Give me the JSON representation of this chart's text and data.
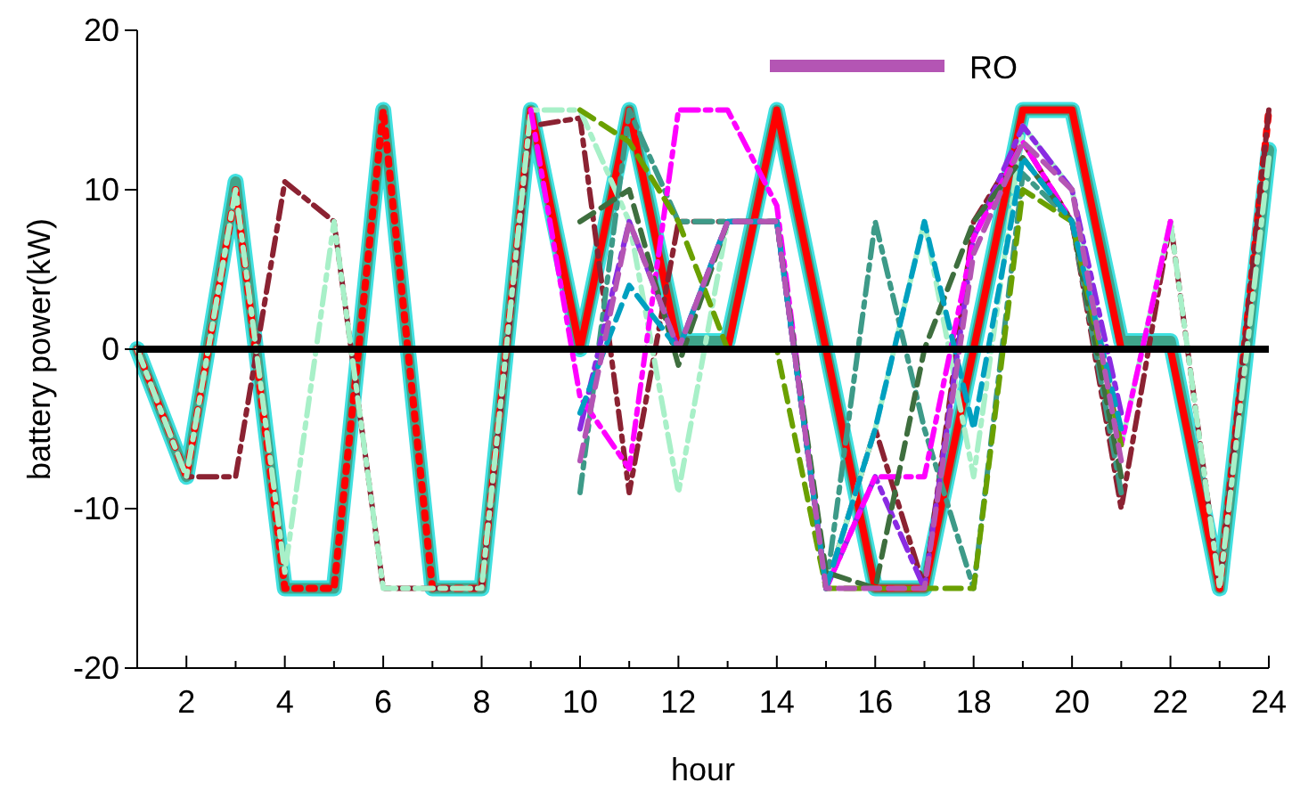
{
  "chart_data": {
    "type": "line",
    "xlabel": "hour",
    "ylabel": "battery power(kW)",
    "x": [
      1,
      2,
      3,
      4,
      5,
      6,
      7,
      8,
      9,
      10,
      11,
      12,
      13,
      14,
      15,
      16,
      17,
      18,
      19,
      20,
      21,
      22,
      23,
      24
    ],
    "xlim": [
      1,
      24
    ],
    "xticks": [
      2,
      {
        "value": 3,
        "label": null
      },
      4,
      {
        "value": 5,
        "label": null
      },
      6,
      {
        "value": 7,
        "label": null
      },
      8,
      {
        "value": 9,
        "label": null
      },
      10,
      {
        "value": 11,
        "label": null
      },
      12,
      {
        "value": 13,
        "label": null
      },
      14,
      {
        "value": 15,
        "label": null
      },
      16,
      {
        "value": 17,
        "label": null
      },
      18,
      {
        "value": 19,
        "label": null
      },
      20,
      {
        "value": 21,
        "label": null
      },
      22,
      {
        "value": 23,
        "label": null
      },
      24
    ],
    "ylim": [
      -20,
      20
    ],
    "yticks": [
      -20,
      -10,
      0,
      10,
      20
    ],
    "grid": false,
    "legend": "top right",
    "ref_lines": [
      {
        "axis": "y",
        "value": 0,
        "color": "#000000"
      }
    ],
    "series": [
      {
        "color": "#3fa58a",
        "line_style": "solid",
        "values": [
          0,
          -8,
          10.5,
          -15,
          -15,
          15,
          -15,
          -15,
          15,
          0,
          15,
          0.5,
          0.5,
          15,
          0,
          -15,
          -15,
          0,
          15,
          15,
          0.5,
          0.5,
          -15,
          12.5
        ]
      },
      {
        "color": "#8b2232",
        "line_style": "dashdot",
        "values": [
          0,
          -8,
          -8,
          10.5,
          8,
          -15,
          -15,
          -15,
          14,
          14.5,
          -9,
          8,
          8,
          8,
          -15,
          -5,
          -15,
          8,
          13,
          8,
          -10,
          8,
          -15,
          15
        ]
      },
      {
        "color": "#a8f0c8",
        "line_style": "dashdot",
        "values": [
          0,
          -8,
          10,
          -14,
          8,
          -15,
          -15,
          -15,
          15,
          15,
          8,
          -9,
          8,
          8,
          -15,
          -5,
          8,
          -8,
          14,
          10,
          -6,
          8,
          -15,
          12
        ]
      },
      {
        "color": "#3e6e3e",
        "line_style": "dashed",
        "values": [
          null,
          null,
          null,
          null,
          null,
          null,
          null,
          null,
          null,
          8,
          10,
          -1,
          8,
          8,
          -14,
          -15,
          0,
          8,
          12,
          8,
          -8,
          null,
          null,
          null
        ]
      },
      {
        "color": "#6aa000",
        "line_style": "dashed",
        "values": [
          null,
          null,
          null,
          null,
          null,
          null,
          null,
          null,
          null,
          15,
          13,
          8,
          0,
          0,
          -15,
          -15,
          -15,
          -15,
          10,
          8,
          -6,
          null,
          null,
          null
        ]
      },
      {
        "color": "#3d9a88",
        "line_style": "dashdot",
        "values": [
          null,
          null,
          null,
          null,
          null,
          null,
          null,
          null,
          null,
          -9,
          15,
          8,
          8,
          8,
          -15,
          8,
          -5,
          -15,
          11,
          8,
          -9,
          null,
          null,
          null
        ]
      },
      {
        "color": "#00a0c0",
        "line_style": "dashed",
        "values": [
          null,
          null,
          null,
          null,
          null,
          null,
          null,
          null,
          null,
          -4,
          4,
          0,
          8,
          8,
          -15,
          -5,
          8,
          -5,
          12,
          8,
          -5,
          null,
          null,
          null
        ]
      },
      {
        "name": "RO",
        "color": "#b455b4",
        "line_style": "dashed",
        "values": [
          null,
          null,
          null,
          null,
          null,
          null,
          null,
          null,
          null,
          -7,
          8,
          0,
          8,
          8,
          -15,
          -15,
          -15,
          6,
          13,
          10,
          -7,
          null,
          null,
          null
        ]
      },
      {
        "color": "#8a2be2",
        "line_style": "dashdot",
        "values": [
          null,
          null,
          null,
          null,
          null,
          null,
          null,
          null,
          null,
          -5,
          8,
          0,
          8,
          8,
          -15,
          -8,
          -15,
          7,
          14,
          10,
          -4,
          null,
          null,
          null
        ]
      },
      {
        "color": "#ff00ff",
        "line_style": "dashdot",
        "values": [
          null,
          null,
          null,
          null,
          null,
          null,
          null,
          null,
          15,
          -3,
          -7.5,
          15,
          15,
          9,
          -15,
          -8,
          -8,
          7,
          13,
          8,
          -6,
          8,
          null,
          null
        ]
      },
      {
        "color": "#ff0000",
        "line_style": "dotted",
        "values": [
          0,
          -8,
          10,
          -15,
          -15,
          15,
          -15,
          -15,
          15,
          null,
          null,
          null,
          null,
          null,
          null,
          null,
          null,
          null,
          null,
          null,
          null,
          null,
          -15,
          15
        ]
      },
      {
        "color": "#ff0000",
        "line_style": "solid",
        "values": [
          null,
          null,
          null,
          null,
          null,
          null,
          null,
          null,
          15,
          0,
          15,
          0,
          0,
          15,
          0,
          -15,
          -15,
          0,
          15,
          15,
          0,
          0,
          -15,
          null
        ]
      }
    ]
  }
}
